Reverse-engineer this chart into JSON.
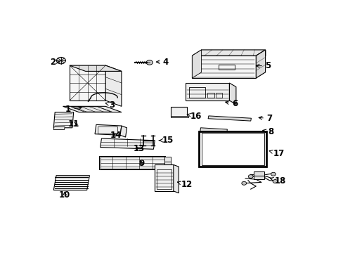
{
  "bg_color": "#ffffff",
  "border_color": "#000000",
  "label_color": "#000000",
  "line_color": "#000000",
  "figsize": [
    4.89,
    3.6
  ],
  "dpi": 100,
  "label_font_size": 8.5,
  "label_coords": {
    "1": [
      0.095,
      0.595,
      0.155,
      0.605
    ],
    "2": [
      0.038,
      0.838,
      0.072,
      0.838
    ],
    "3": [
      0.26,
      0.618,
      0.225,
      0.63
    ],
    "4": [
      0.46,
      0.838,
      0.415,
      0.838
    ],
    "5": [
      0.845,
      0.818,
      0.79,
      0.818
    ],
    "6": [
      0.72,
      0.622,
      0.675,
      0.635
    ],
    "7": [
      0.85,
      0.548,
      0.8,
      0.553
    ],
    "8": [
      0.855,
      0.478,
      0.815,
      0.49
    ],
    "9": [
      0.37,
      0.318,
      0.355,
      0.305
    ],
    "10": [
      0.082,
      0.155,
      0.082,
      0.185
    ],
    "11": [
      0.115,
      0.518,
      0.14,
      0.518
    ],
    "12": [
      0.54,
      0.208,
      0.495,
      0.225
    ],
    "13": [
      0.36,
      0.392,
      0.34,
      0.405
    ],
    "14": [
      0.275,
      0.462,
      0.255,
      0.478
    ],
    "15": [
      0.47,
      0.435,
      0.435,
      0.435
    ],
    "16": [
      0.575,
      0.558,
      0.54,
      0.57
    ],
    "17": [
      0.885,
      0.368,
      0.84,
      0.385
    ],
    "18": [
      0.89,
      0.228,
      0.85,
      0.242
    ]
  }
}
